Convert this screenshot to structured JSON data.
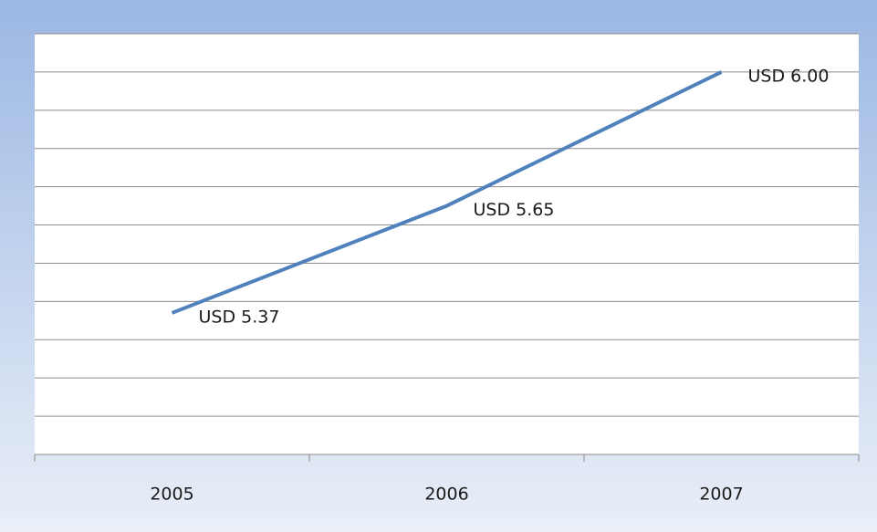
{
  "chart_data": {
    "type": "line",
    "categories": [
      "2005",
      "2006",
      "2007"
    ],
    "series": [
      {
        "name": null,
        "color": "#4f81bd",
        "values": [
          5.37,
          5.65,
          6.0
        ],
        "value_labels": [
          "USD 5.37",
          "USD 5.65",
          "USD 6.00"
        ]
      }
    ],
    "ylim": [
      5.0,
      6.1
    ],
    "yticks": [
      5.0,
      5.1,
      5.2,
      5.3,
      5.4,
      5.5,
      5.6,
      5.7,
      5.8,
      5.9,
      6.0,
      6.1
    ],
    "grid": true
  }
}
